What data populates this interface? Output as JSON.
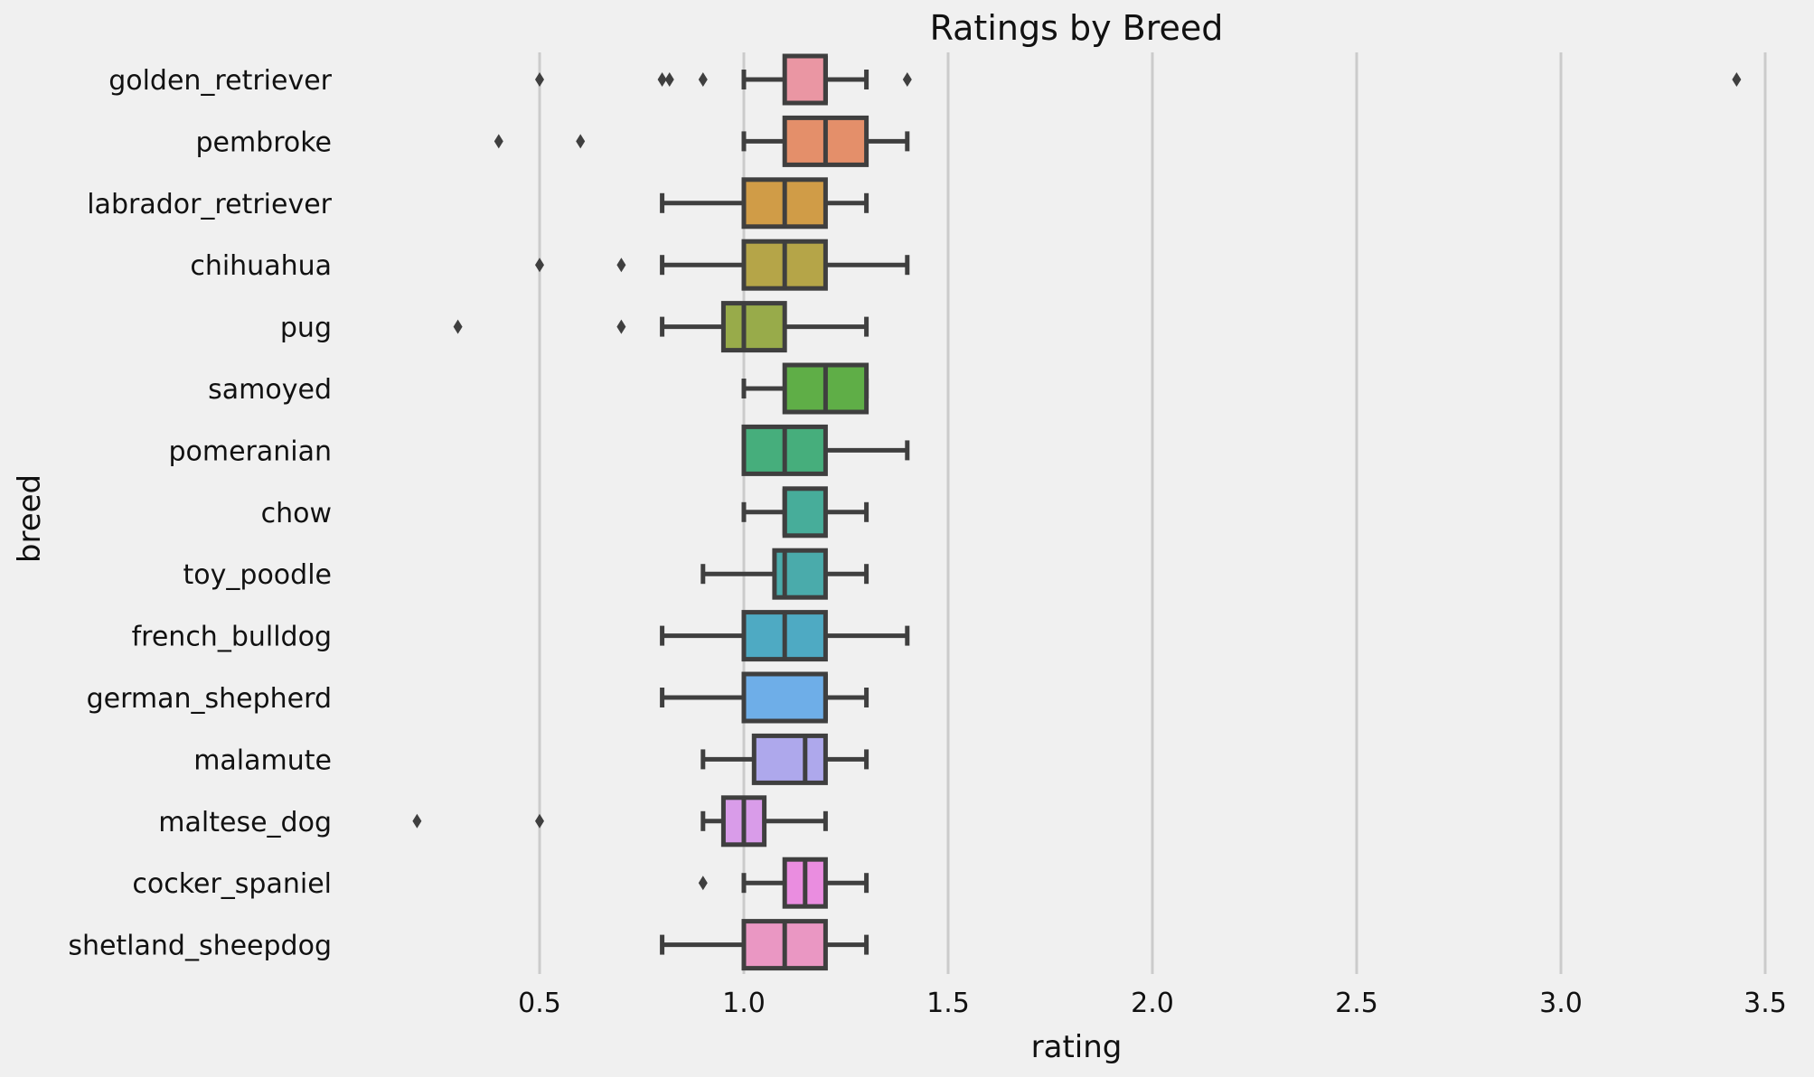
{
  "chart_data": {
    "type": "box",
    "title": "Ratings by Breed",
    "xlabel": "rating",
    "ylabel": "breed",
    "xlim": [
      0.0,
      3.6
    ],
    "xticks": [
      0.5,
      1.0,
      1.5,
      2.0,
      2.5,
      3.0,
      3.5
    ],
    "xtick_labels": [
      "0.5",
      "1.0",
      "1.5",
      "2.0",
      "2.5",
      "3.0",
      "3.5"
    ],
    "grid": "vertical",
    "orientation": "horizontal",
    "categories": [
      "golden_retriever",
      "pembroke",
      "labrador_retriever",
      "chihuahua",
      "pug",
      "samoyed",
      "pomeranian",
      "chow",
      "toy_poodle",
      "french_bulldog",
      "german_shepherd",
      "malamute",
      "maltese_dog",
      "cocker_spaniel",
      "shetland_sheepdog"
    ],
    "series": [
      {
        "category": "golden_retriever",
        "whisker_low": 1.0,
        "q1": 1.1,
        "median": 1.2,
        "q3": 1.2,
        "whisker_high": 1.3,
        "fliers": [
          0.5,
          0.8,
          0.818,
          0.9,
          1.4,
          3.43
        ],
        "color": "#ea96a3"
      },
      {
        "category": "pembroke",
        "whisker_low": 1.0,
        "q1": 1.1,
        "median": 1.2,
        "q3": 1.3,
        "whisker_high": 1.4,
        "fliers": [
          0.4,
          0.6
        ],
        "color": "#e48f6a"
      },
      {
        "category": "labrador_retriever",
        "whisker_low": 0.8,
        "q1": 1.0,
        "median": 1.1,
        "q3": 1.2,
        "whisker_high": 1.3,
        "fliers": [],
        "color": "#d09c47"
      },
      {
        "category": "chihuahua",
        "whisker_low": 0.8,
        "q1": 1.0,
        "median": 1.1,
        "q3": 1.2,
        "whisker_high": 1.4,
        "fliers": [
          0.5,
          0.7
        ],
        "color": "#b5a548"
      },
      {
        "category": "pug",
        "whisker_low": 0.8,
        "q1": 0.95,
        "median": 1.0,
        "q3": 1.1,
        "whisker_high": 1.3,
        "fliers": [
          0.3,
          0.7
        ],
        "color": "#98ab4a"
      },
      {
        "category": "samoyed",
        "whisker_low": 1.0,
        "q1": 1.1,
        "median": 1.2,
        "q3": 1.3,
        "whisker_high": 1.3,
        "fliers": [],
        "color": "#5fae47"
      },
      {
        "category": "pomeranian",
        "whisker_low": 1.0,
        "q1": 1.0,
        "median": 1.1,
        "q3": 1.2,
        "whisker_high": 1.4,
        "fliers": [],
        "color": "#46ae7c"
      },
      {
        "category": "chow",
        "whisker_low": 1.0,
        "q1": 1.1,
        "median": 1.1,
        "q3": 1.2,
        "whisker_high": 1.3,
        "fliers": [],
        "color": "#47ad9a"
      },
      {
        "category": "toy_poodle",
        "whisker_low": 0.9,
        "q1": 1.075,
        "median": 1.1,
        "q3": 1.2,
        "whisker_high": 1.3,
        "fliers": [],
        "color": "#4aabab"
      },
      {
        "category": "french_bulldog",
        "whisker_low": 0.8,
        "q1": 1.0,
        "median": 1.1,
        "q3": 1.2,
        "whisker_high": 1.4,
        "fliers": [],
        "color": "#4eaac3"
      },
      {
        "category": "german_shepherd",
        "whisker_low": 0.8,
        "q1": 1.0,
        "median": 1.2,
        "q3": 1.2,
        "whisker_high": 1.3,
        "fliers": [],
        "color": "#6eaee8"
      },
      {
        "category": "malamute",
        "whisker_low": 0.9,
        "q1": 1.025,
        "median": 1.15,
        "q3": 1.2,
        "whisker_high": 1.3,
        "fliers": [],
        "color": "#aea8ec"
      },
      {
        "category": "maltese_dog",
        "whisker_low": 0.9,
        "q1": 0.95,
        "median": 1.0,
        "q3": 1.05,
        "whisker_high": 1.2,
        "fliers": [
          0.2,
          0.5
        ],
        "color": "#d99ce9"
      },
      {
        "category": "cocker_spaniel",
        "whisker_low": 1.0,
        "q1": 1.1,
        "median": 1.15,
        "q3": 1.2,
        "whisker_high": 1.3,
        "fliers": [
          0.9
        ],
        "color": "#ea8de0"
      },
      {
        "category": "shetland_sheepdog",
        "whisker_low": 0.8,
        "q1": 1.0,
        "median": 1.1,
        "q3": 1.2,
        "whisker_high": 1.3,
        "fliers": [],
        "color": "#ea97c3"
      }
    ]
  }
}
